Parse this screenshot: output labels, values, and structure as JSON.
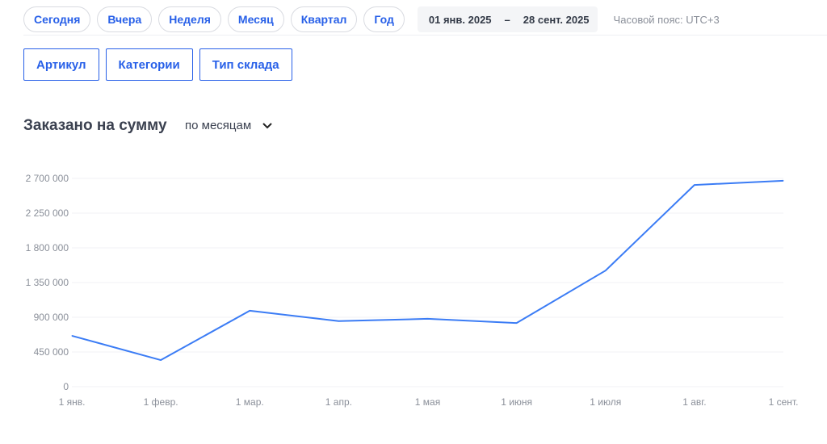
{
  "period_buttons": [
    "Сегодня",
    "Вчера",
    "Неделя",
    "Месяц",
    "Квартал",
    "Год"
  ],
  "date_range": {
    "from": "01 янв. 2025",
    "separator": "–",
    "to": "28 сент. 2025"
  },
  "timezone": "Часовой пояс: UTC+3",
  "filters": [
    "Артикул",
    "Категории",
    "Тип склада"
  ],
  "section_title": "Заказано на сумму",
  "grouping": {
    "selected": "по месяцам",
    "icon": "chevron-down-icon"
  },
  "chart_data": {
    "type": "line",
    "categories": [
      "1 янв.",
      "1 февр.",
      "1 мар.",
      "1 апр.",
      "1 мая",
      "1 июня",
      "1 июля",
      "1 авг.",
      "1 сент."
    ],
    "values": [
      660000,
      345000,
      985000,
      850000,
      880000,
      825000,
      1505000,
      2615000,
      2670000
    ],
    "yticks": [
      0,
      450000,
      900000,
      1350000,
      1800000,
      2250000,
      2700000
    ],
    "ytick_labels": [
      "0",
      "450 000",
      "900 000",
      "1 350 000",
      "1 800 000",
      "2 250 000",
      "2 700 000"
    ],
    "ylim": [
      0,
      2700000
    ],
    "grid": true,
    "line_color": "#3b7cf5"
  }
}
